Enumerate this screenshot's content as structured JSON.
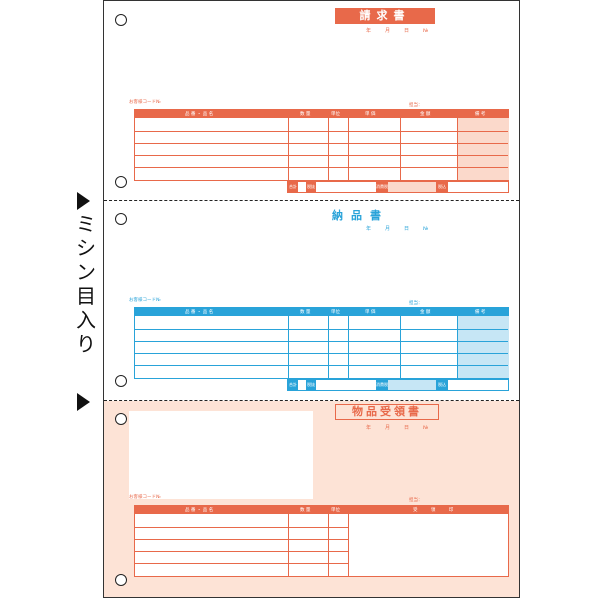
{
  "side_label": "ミシン目入り",
  "colors": {
    "red": "#e8694a",
    "blue": "#29a3d9",
    "pink_bg": "#fde3d6",
    "light_blue": "#c6e6f5",
    "light_pink": "#fbd9cb"
  },
  "form1": {
    "title": "請求書",
    "date": [
      "年",
      "月",
      "日",
      "№"
    ],
    "customer_code": "お客様コード№",
    "sender": "担当：",
    "headers": [
      "品 番 ・ 品 名",
      "数 量",
      "単位",
      "単 価",
      "金 額",
      "備 考"
    ],
    "summary": [
      "合計",
      "税抜",
      "消費税",
      "税込"
    ]
  },
  "form2": {
    "title": "納品書",
    "date": [
      "年",
      "月",
      "日",
      "№"
    ],
    "customer_code": "お客様コード№",
    "sender": "担当：",
    "headers": [
      "品 番 ・ 品 名",
      "数 量",
      "単位",
      "単 価",
      "金 額",
      "備 考"
    ],
    "summary": [
      "合計",
      "税抜",
      "消費税",
      "税込"
    ]
  },
  "form3": {
    "title": "物品受領書",
    "date": [
      "年",
      "月",
      "日",
      "№"
    ],
    "customer_code": "お客様コード№",
    "sender": "担当：",
    "headers": [
      "品 番 ・ 品 名",
      "数 量",
      "単位",
      "受 領 印"
    ]
  }
}
